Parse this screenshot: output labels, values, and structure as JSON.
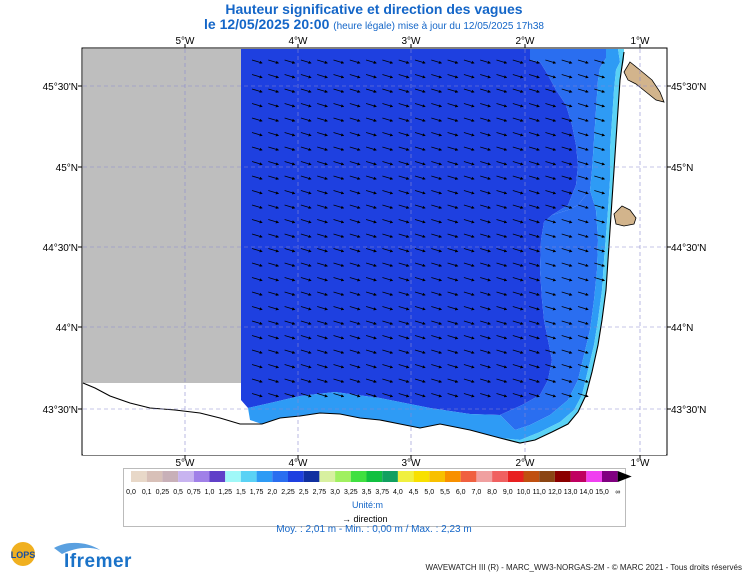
{
  "title": {
    "line1": "Hauteur significative et direction des vagues",
    "line2_main": "le 12/05/2025 20:00",
    "line2_sub": "(heure légale) mise à jour du 12/05/2025 17h38"
  },
  "map": {
    "top_lon_labels": [
      "5°W",
      "4°W",
      "3°W",
      "2°W",
      "1°W"
    ],
    "bottom_lon_labels": [
      "5°W",
      "4°W",
      "3°W",
      "2°W",
      "1°W"
    ],
    "left_lat_labels": [
      "45°30'N",
      "45°N",
      "44°30'N",
      "44°N",
      "43°30'N"
    ],
    "right_lat_labels": [
      "45°30'N",
      "45°N",
      "44°30'N",
      "44°N",
      "43°30'N"
    ],
    "colors": {
      "land": "#d2b48c",
      "nodata": "#bebebe",
      "sea_deep": "#1e40e0",
      "sea_mid": "#2a6ef0",
      "sea_light": "#2e9bf5",
      "sea_coast": "#5ad2f5",
      "coast_line": "#000000",
      "grid": "#8888cc"
    }
  },
  "legend": {
    "values": [
      "0,0",
      "0,1",
      "0,25",
      "0,5",
      "0,75",
      "1,0",
      "1,25",
      "1,5",
      "1,75",
      "2,0",
      "2,25",
      "2,5",
      "2,75",
      "3,0",
      "3,25",
      "3,5",
      "3,75",
      "4,0",
      "4,5",
      "5,0",
      "5,5",
      "6,0",
      "7,0",
      "8,0",
      "9,0",
      "10,0",
      "11,0",
      "12,0",
      "13,0",
      "14,0",
      "15,0",
      "∞"
    ],
    "colors": [
      "#e8d8c8",
      "#d8c0b8",
      "#c8b0b8",
      "#c8b4f0",
      "#a080e8",
      "#6040c8",
      "#a0f8f8",
      "#5ad2f5",
      "#2e9bf5",
      "#2a6ef0",
      "#1e40e0",
      "#1030a0",
      "#d8f0a0",
      "#a0f060",
      "#40e040",
      "#10c040",
      "#10a060",
      "#f0f040",
      "#f8e000",
      "#f8c000",
      "#f89000",
      "#f06040",
      "#f0a0a0",
      "#f06060",
      "#e82020",
      "#c05010",
      "#8b4513",
      "#8b0000",
      "#c00060",
      "#f040f0",
      "#800080"
    ],
    "unit": "Unité:m",
    "direction": "direction"
  },
  "stats": {
    "text": "Moy. : 2,01 m   -   Min. : 0,00 m / Max. : 2,23 m"
  },
  "footer": {
    "text": "WAVEWATCH III (R) - MARC_WW3-NORGAS-2M - © MARC 2021 - Tous droits réservés"
  },
  "logos": {
    "lops": "LOPS",
    "ifremer": "Ifremer"
  }
}
